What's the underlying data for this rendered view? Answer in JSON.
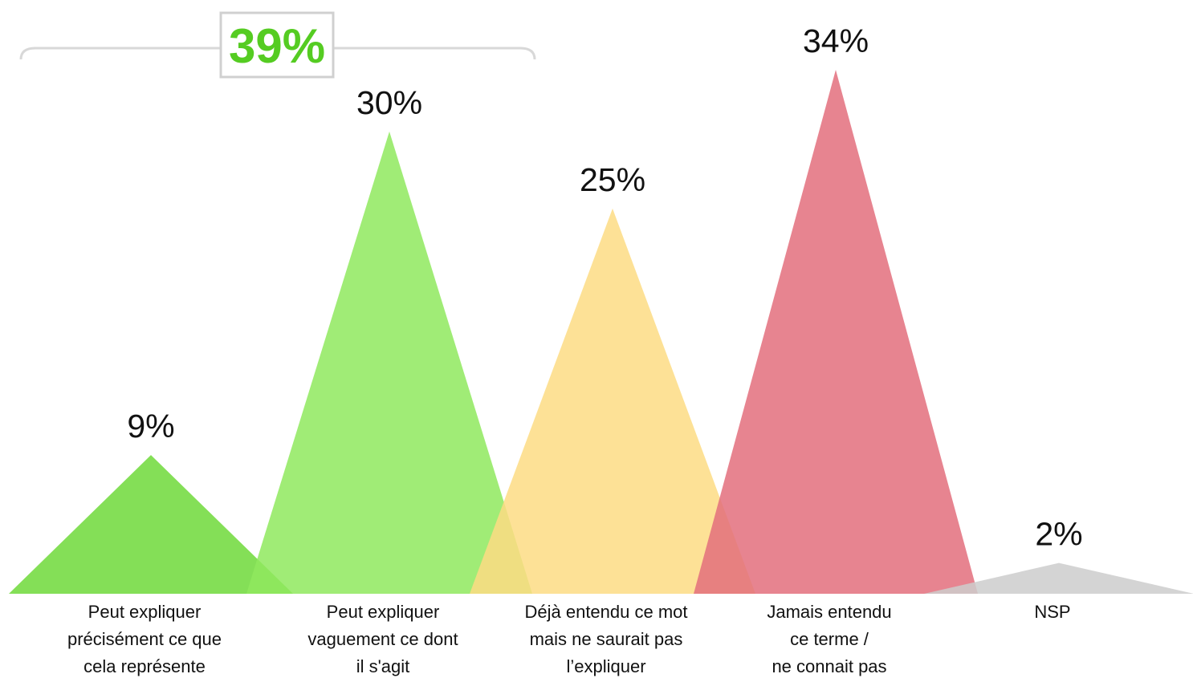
{
  "chart_data": {
    "type": "area",
    "categories": [
      [
        "Peut expliquer",
        "précisément ce que",
        "cela représente"
      ],
      [
        "Peut expliquer",
        "vaguement ce dont",
        "il s'agit"
      ],
      [
        "Déjà entendu ce mot",
        "mais ne saurait pas",
        "l’expliquer"
      ],
      [
        "Jamais entendu",
        "ce terme /",
        "ne connait pas"
      ],
      [
        "NSP"
      ]
    ],
    "values": [
      9,
      30,
      25,
      34,
      2
    ],
    "value_labels": [
      "9%",
      "30%",
      "25%",
      "34%",
      "2%"
    ],
    "colors": [
      "#6fd93a",
      "#8fe95e",
      "#fddc84",
      "#e36f7d",
      "#cccccc"
    ],
    "ylim": [
      0,
      34
    ],
    "bracket": {
      "label": "39%",
      "color": "#55cc22",
      "spans_categories": [
        0,
        1
      ]
    }
  }
}
